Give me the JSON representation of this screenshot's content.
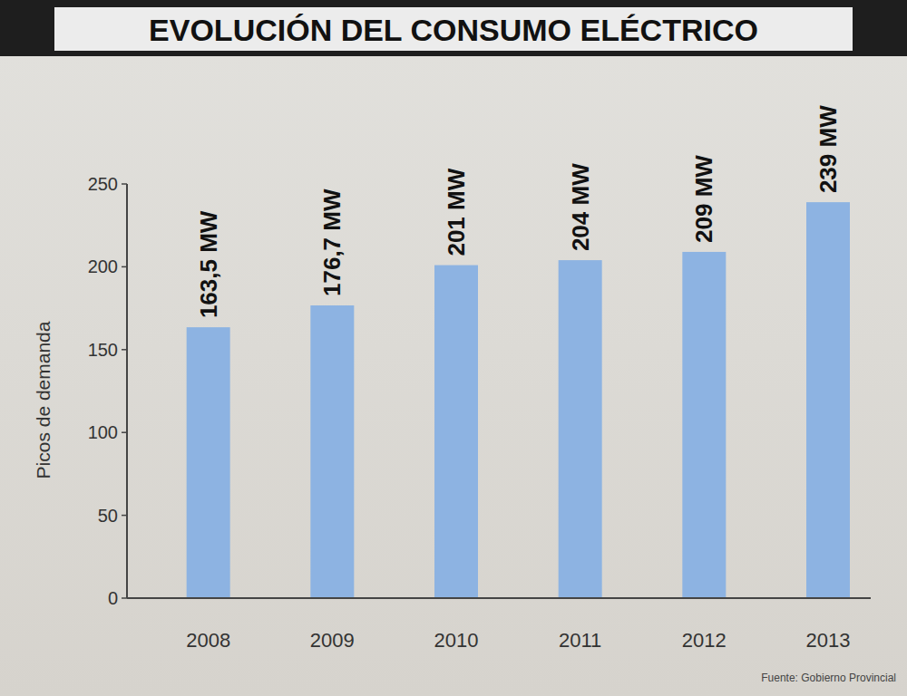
{
  "chart_data": {
    "type": "bar",
    "title": "EVOLUCIÓN DEL CONSUMO ELÉCTRICO",
    "y_label": "Picos de demanda",
    "source": "Fuente: Gobierno Provincial",
    "categories": [
      "2008",
      "2009",
      "2010",
      "2011",
      "2012",
      "2013"
    ],
    "values": [
      163.5,
      176.7,
      201,
      204,
      209,
      239
    ],
    "value_labels": [
      "163,5 MW",
      "176,7 MW",
      "201 MW",
      "204 MW",
      "209 MW",
      "239 MW"
    ],
    "data_labels": true,
    "color": "#8db3e2",
    "ylim": [
      0,
      250
    ],
    "yticks": [
      0,
      50,
      100,
      150,
      200,
      250
    ],
    "grid": false
  }
}
